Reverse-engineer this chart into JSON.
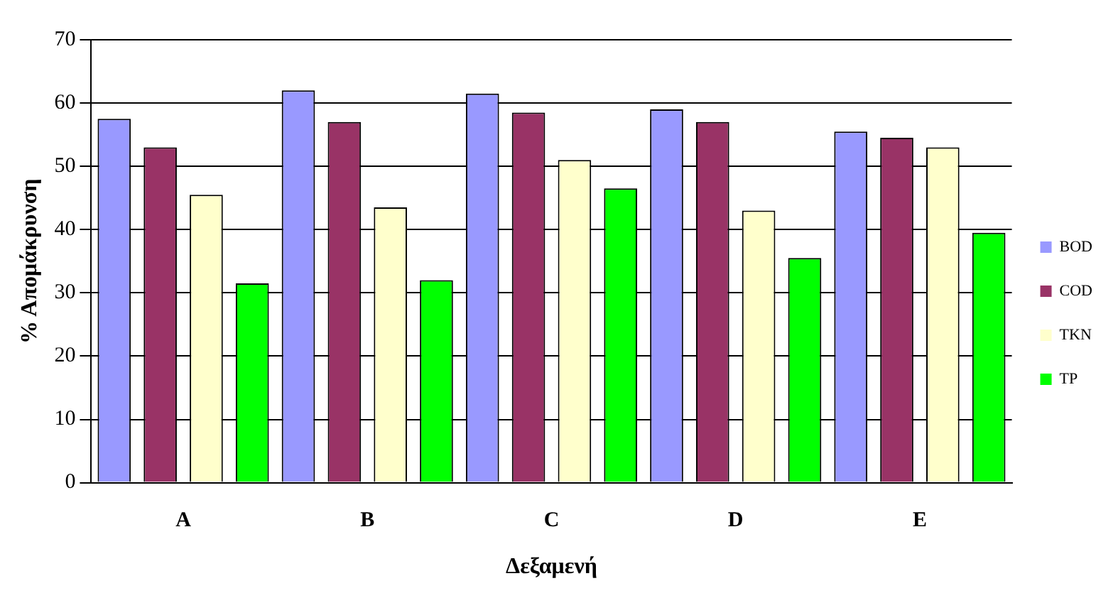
{
  "chart_data": {
    "type": "bar",
    "xlabel": "Δεξαμενή",
    "ylabel": "% Απομάκρυνση",
    "categories": [
      "A",
      "B",
      "C",
      "D",
      "E"
    ],
    "series": [
      {
        "name": "BOD",
        "color": "#9999ff",
        "values": [
          57.5,
          62,
          61.5,
          59,
          55.5
        ]
      },
      {
        "name": "COD",
        "color": "#993366",
        "values": [
          53,
          57,
          58.5,
          57,
          54.5
        ]
      },
      {
        "name": "TKN",
        "color": "#ffffcc",
        "values": [
          45.5,
          43.5,
          51,
          43,
          53
        ]
      },
      {
        "name": "TP",
        "color": "#00ff00",
        "values": [
          31.5,
          32,
          46.5,
          35.5,
          39.5
        ]
      }
    ],
    "ylim": [
      0,
      70
    ],
    "yticks": [
      0,
      10,
      20,
      30,
      40,
      50,
      60,
      70
    ],
    "grid": "y",
    "legend": "right"
  }
}
